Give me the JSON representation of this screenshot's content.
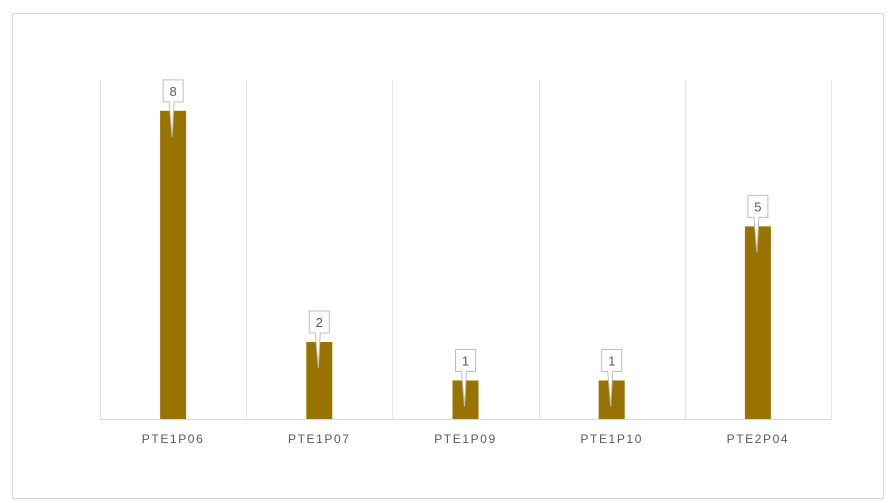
{
  "chart_data": {
    "type": "bar",
    "categories": [
      "PTE1P06",
      "PTE1P07",
      "PTE1P09",
      "PTE1P10",
      "PTE2P04"
    ],
    "values": [
      8,
      2,
      1,
      1,
      5
    ],
    "title": "",
    "xlabel": "",
    "ylabel": "",
    "ylim": [
      0,
      8.8
    ],
    "grid": "vertical",
    "legend": "none",
    "bar_color": "#997300",
    "data_labels": true
  }
}
